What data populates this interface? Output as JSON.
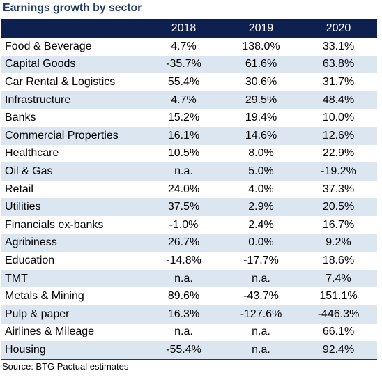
{
  "title": "Earnings growth by sector",
  "columns": [
    "",
    "2018",
    "2019",
    "2020"
  ],
  "rows": [
    {
      "sector": "Food & Beverage",
      "y2018": "4.7%",
      "y2019": "138.0%",
      "y2020": "33.1%"
    },
    {
      "sector": "Capital Goods",
      "y2018": "-35.7%",
      "y2019": "61.6%",
      "y2020": "63.8%"
    },
    {
      "sector": "Car Rental & Logistics",
      "y2018": "55.4%",
      "y2019": "30.6%",
      "y2020": "31.7%"
    },
    {
      "sector": "Infrastructure",
      "y2018": "4.7%",
      "y2019": "29.5%",
      "y2020": "48.4%"
    },
    {
      "sector": "Banks",
      "y2018": "15.2%",
      "y2019": "19.4%",
      "y2020": "10.0%"
    },
    {
      "sector": "Commercial Properties",
      "y2018": "16.1%",
      "y2019": "14.6%",
      "y2020": "12.6%"
    },
    {
      "sector": "Healthcare",
      "y2018": "10.5%",
      "y2019": "8.0%",
      "y2020": "22.9%"
    },
    {
      "sector": "Oil & Gas",
      "y2018": "n.a.",
      "y2019": "5.0%",
      "y2020": "-19.2%"
    },
    {
      "sector": "Retail",
      "y2018": "24.0%",
      "y2019": "4.0%",
      "y2020": "37.3%"
    },
    {
      "sector": "Utilities",
      "y2018": "37.5%",
      "y2019": "2.9%",
      "y2020": "20.5%"
    },
    {
      "sector": "Financials ex-banks",
      "y2018": "-1.0%",
      "y2019": "2.4%",
      "y2020": "16.7%"
    },
    {
      "sector": "Agribiness",
      "y2018": "26.7%",
      "y2019": "0.0%",
      "y2020": "9.2%"
    },
    {
      "sector": "Education",
      "y2018": "-14.8%",
      "y2019": "-17.7%",
      "y2020": "18.6%"
    },
    {
      "sector": "TMT",
      "y2018": "n.a.",
      "y2019": "n.a.",
      "y2020": "7.4%"
    },
    {
      "sector": "Metals & Mining",
      "y2018": "89.6%",
      "y2019": "-43.7%",
      "y2020": "151.1%"
    },
    {
      "sector": "Pulp & paper",
      "y2018": "16.3%",
      "y2019": "-127.6%",
      "y2020": "-446.3%"
    },
    {
      "sector": "Airlines & Mileage",
      "y2018": "n.a.",
      "y2019": "n.a.",
      "y2020": "66.1%"
    },
    {
      "sector": "Housing",
      "y2018": "-55.4%",
      "y2019": "n.a.",
      "y2020": "92.4%"
    }
  ],
  "source": "Source: BTG Pactual estimates",
  "colors": {
    "header_bg": "#0d2050",
    "title": "#1f3a60",
    "row_band": "#dce6f1"
  }
}
